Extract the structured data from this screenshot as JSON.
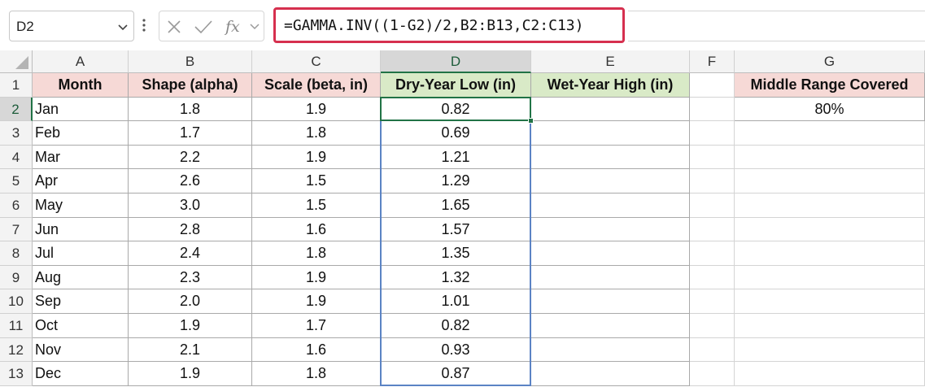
{
  "name_box": {
    "value": "D2"
  },
  "formula_bar": {
    "formula": "=GAMMA.INV((1-G2)/2,B2:B13,C2:C13)"
  },
  "icons": {
    "cancel": "x-icon",
    "enter": "check-icon",
    "function": "fx-icon",
    "dropdown": "chevron-down-icon"
  },
  "colors": {
    "header_pink": "#f6d9d6",
    "header_green": "#d9eac7",
    "highlight_border": "#d6304f",
    "selection_green": "#217346",
    "range_blue": "#5b83c4"
  },
  "columns": [
    "A",
    "B",
    "C",
    "D",
    "E",
    "F",
    "G"
  ],
  "rows": [
    "1",
    "2",
    "3",
    "4",
    "5",
    "6",
    "7",
    "8",
    "9",
    "10",
    "11",
    "12",
    "13"
  ],
  "active_cell": {
    "column": "D",
    "row": "2"
  },
  "table": {
    "headers": {
      "month": "Month",
      "shape": "Shape (alpha)",
      "scale": "Scale (beta, in)",
      "dry_low": "Dry-Year Low (in)",
      "wet_high": "Wet-Year High (in)"
    },
    "rows": [
      {
        "month": "Jan",
        "shape": "1.8",
        "scale": "1.9",
        "dry_low": "0.82",
        "wet_high": ""
      },
      {
        "month": "Feb",
        "shape": "1.7",
        "scale": "1.8",
        "dry_low": "0.69",
        "wet_high": ""
      },
      {
        "month": "Mar",
        "shape": "2.2",
        "scale": "1.9",
        "dry_low": "1.21",
        "wet_high": ""
      },
      {
        "month": "Apr",
        "shape": "2.6",
        "scale": "1.5",
        "dry_low": "1.29",
        "wet_high": ""
      },
      {
        "month": "May",
        "shape": "3.0",
        "scale": "1.5",
        "dry_low": "1.65",
        "wet_high": ""
      },
      {
        "month": "Jun",
        "shape": "2.8",
        "scale": "1.6",
        "dry_low": "1.57",
        "wet_high": ""
      },
      {
        "month": "Jul",
        "shape": "2.4",
        "scale": "1.8",
        "dry_low": "1.35",
        "wet_high": ""
      },
      {
        "month": "Aug",
        "shape": "2.3",
        "scale": "1.9",
        "dry_low": "1.32",
        "wet_high": ""
      },
      {
        "month": "Sep",
        "shape": "2.0",
        "scale": "1.9",
        "dry_low": "1.01",
        "wet_high": ""
      },
      {
        "month": "Oct",
        "shape": "1.9",
        "scale": "1.7",
        "dry_low": "0.82",
        "wet_high": ""
      },
      {
        "month": "Nov",
        "shape": "2.1",
        "scale": "1.6",
        "dry_low": "0.93",
        "wet_high": ""
      },
      {
        "month": "Dec",
        "shape": "1.9",
        "scale": "1.8",
        "dry_low": "0.87",
        "wet_high": ""
      }
    ]
  },
  "side_table": {
    "header": "Middle Range Covered",
    "value": "80%"
  }
}
